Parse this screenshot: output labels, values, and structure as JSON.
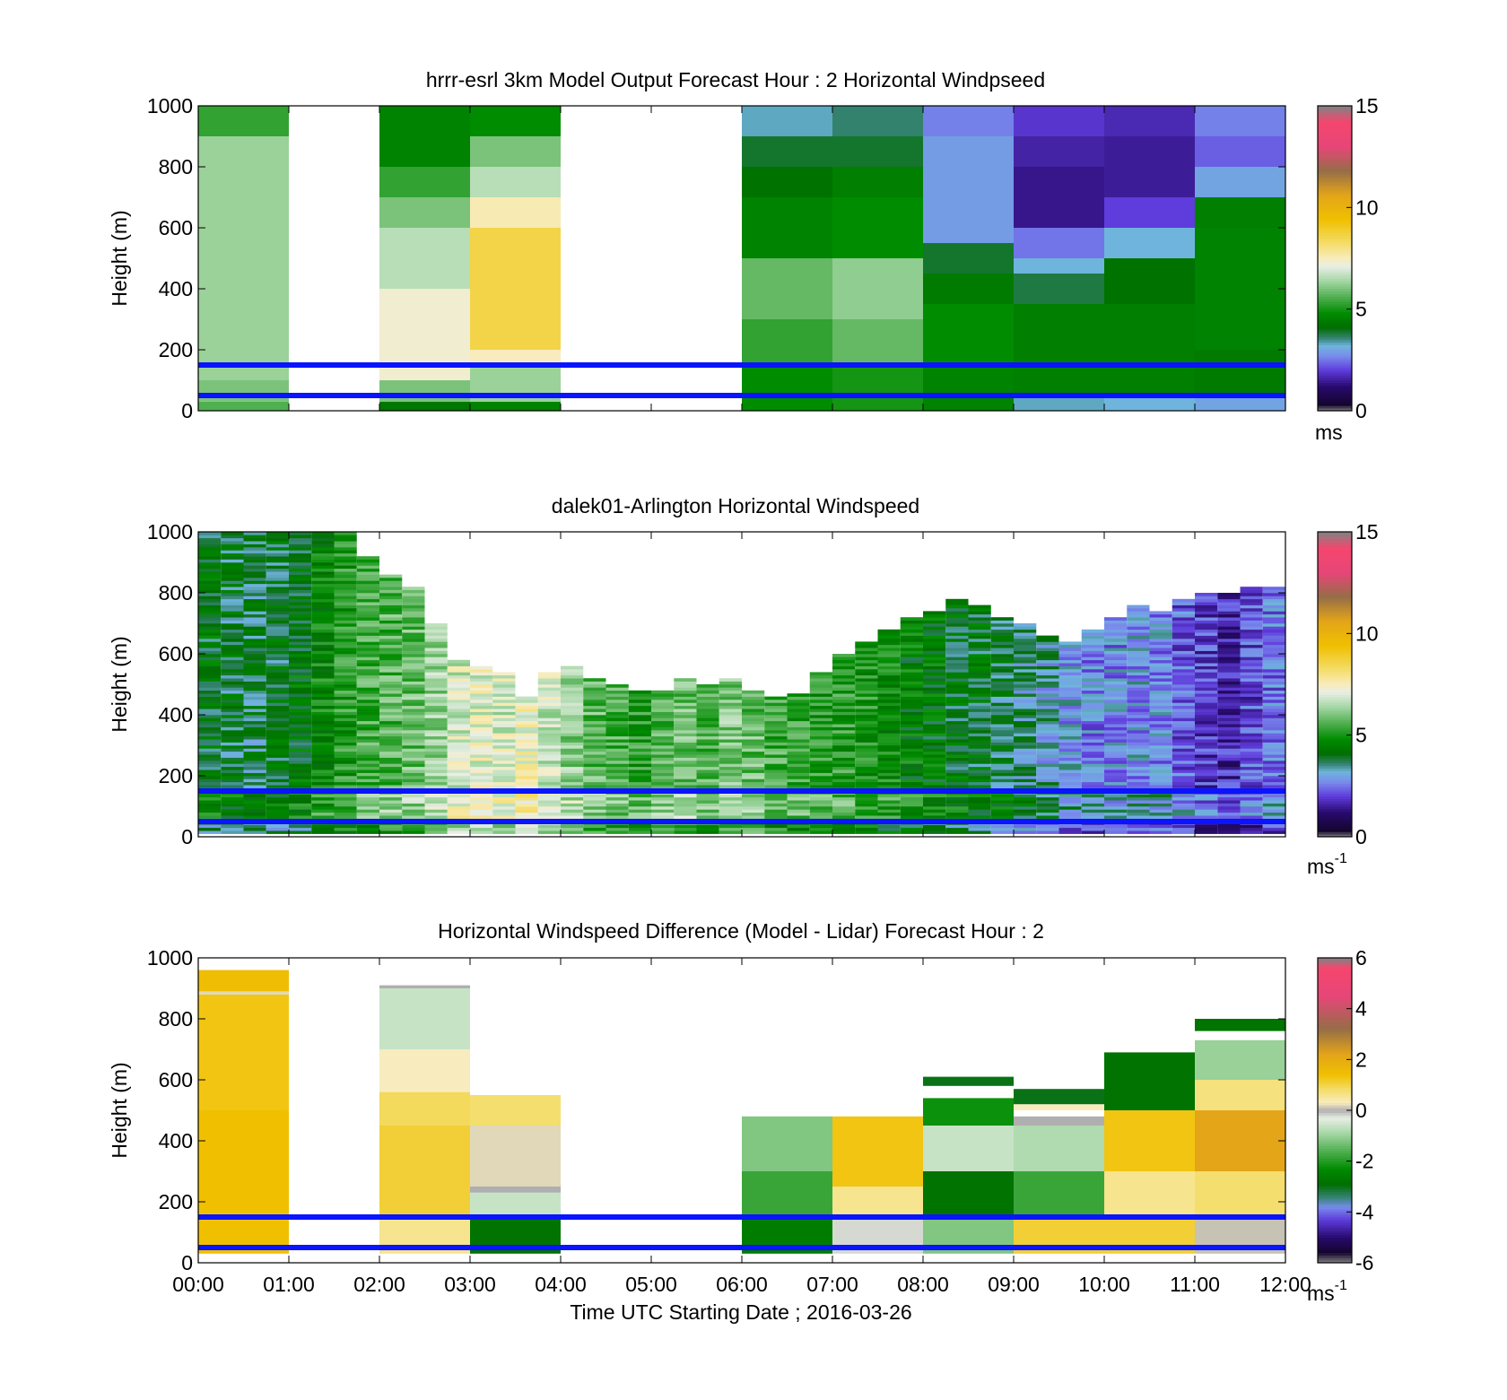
{
  "figure": {
    "xlabel": "Time UTC  Starting Date ; 2016-03-26",
    "x_ticks": [
      "00:00",
      "01:00",
      "02:00",
      "03:00",
      "04:00",
      "05:00",
      "06:00",
      "07:00",
      "08:00",
      "09:00",
      "10:00",
      "11:00",
      "12:00"
    ]
  },
  "colors": {
    "reference_line": "#0a14ff",
    "missing": "#ffffff"
  },
  "chart_data": [
    {
      "type": "heatmap",
      "title": "hrrr-esrl 3km Model Output   Forecast Hour : 2 Horizontal Windpseed",
      "ylabel": "Height (m)",
      "xlim_hours": [
        0,
        12
      ],
      "ylim": [
        0,
        1000
      ],
      "y_ticks": [
        "0",
        "200",
        "400",
        "600",
        "800",
        "1000"
      ],
      "colorbar": {
        "label": "ms",
        "label_sup": "",
        "range": [
          0,
          15
        ],
        "ticks": [
          "0",
          "5",
          "10",
          "15"
        ],
        "scale": "speed"
      },
      "reference_lines_m": [
        50,
        150
      ],
      "bin_width_hours": 1,
      "columns": [
        {
          "start_hour": 0,
          "values": [
            [
              0,
              30,
              5.6
            ],
            [
              30,
              100,
              6.0
            ],
            [
              100,
              900,
              6.3
            ],
            [
              900,
              1000,
              5.3
            ]
          ]
        },
        {
          "start_hour": 1,
          "values": []
        },
        {
          "start_hour": 2,
          "values": [
            [
              0,
              30,
              4.3
            ],
            [
              30,
              100,
              6.0
            ],
            [
              100,
              400,
              7.3
            ],
            [
              400,
              600,
              6.6
            ],
            [
              600,
              700,
              6.0
            ],
            [
              700,
              800,
              5.3
            ],
            [
              800,
              1000,
              4.6
            ]
          ]
        },
        {
          "start_hour": 3,
          "values": [
            [
              0,
              30,
              4.6
            ],
            [
              30,
              150,
              6.3
            ],
            [
              150,
              200,
              7.5
            ],
            [
              200,
              600,
              8.6
            ],
            [
              600,
              700,
              7.6
            ],
            [
              700,
              800,
              6.6
            ],
            [
              800,
              900,
              6.0
            ],
            [
              900,
              1000,
              4.8
            ]
          ]
        },
        {
          "start_hour": 4,
          "values": []
        },
        {
          "start_hour": 5,
          "values": []
        },
        {
          "start_hour": 6,
          "values": [
            [
              0,
              150,
              4.8
            ],
            [
              150,
              300,
              5.3
            ],
            [
              300,
              500,
              5.8
            ],
            [
              500,
              700,
              4.6
            ],
            [
              700,
              800,
              4.2
            ],
            [
              800,
              900,
              3.9
            ],
            [
              900,
              1000,
              3.3
            ]
          ]
        },
        {
          "start_hour": 7,
          "values": [
            [
              0,
              150,
              5.0
            ],
            [
              150,
              300,
              5.8
            ],
            [
              300,
              500,
              6.2
            ],
            [
              500,
              700,
              4.8
            ],
            [
              700,
              800,
              4.5
            ],
            [
              800,
              900,
              3.9
            ],
            [
              900,
              1000,
              3.6
            ]
          ]
        },
        {
          "start_hour": 8,
          "values": [
            [
              0,
              150,
              4.6
            ],
            [
              150,
              350,
              4.8
            ],
            [
              350,
              450,
              4.4
            ],
            [
              450,
              550,
              3.9
            ],
            [
              550,
              900,
              2.9
            ],
            [
              900,
              1000,
              2.6
            ]
          ]
        },
        {
          "start_hour": 9,
          "values": [
            [
              0,
              50,
              3.3
            ],
            [
              50,
              350,
              4.5
            ],
            [
              350,
              450,
              3.8
            ],
            [
              450,
              500,
              3.2
            ],
            [
              500,
              600,
              2.5
            ],
            [
              600,
              800,
              1.4
            ],
            [
              800,
              900,
              1.6
            ],
            [
              900,
              1000,
              1.9
            ]
          ]
        },
        {
          "start_hour": 10,
          "values": [
            [
              0,
              50,
              3.2
            ],
            [
              50,
              350,
              4.5
            ],
            [
              350,
              500,
              4.2
            ],
            [
              500,
              600,
              3.2
            ],
            [
              600,
              700,
              2.0
            ],
            [
              700,
              900,
              1.5
            ],
            [
              900,
              1000,
              1.7
            ]
          ]
        },
        {
          "start_hour": 11,
          "values": [
            [
              0,
              50,
              3.0
            ],
            [
              50,
              200,
              4.4
            ],
            [
              200,
              600,
              4.6
            ],
            [
              600,
              700,
              4.5
            ],
            [
              700,
              800,
              3.0
            ],
            [
              800,
              900,
              2.3
            ],
            [
              900,
              1000,
              2.6
            ]
          ]
        }
      ]
    },
    {
      "type": "heatmap",
      "title": "dalek01-Arlington  Horizontal Windspeed",
      "ylabel": "Height (m)",
      "xlim_hours": [
        0,
        12
      ],
      "ylim": [
        0,
        1000
      ],
      "y_ticks": [
        "0",
        "200",
        "400",
        "600",
        "800",
        "1000"
      ],
      "colorbar": {
        "label": "ms",
        "label_sup": "-1",
        "range": [
          0,
          15
        ],
        "ticks": [
          "0",
          "5",
          "10",
          "15"
        ],
        "scale": "speed"
      },
      "reference_lines_m": [
        50,
        150
      ],
      "bin_width_hours": 0.25,
      "columns": [
        {
          "start_hour": 0.0,
          "top_m": 1000,
          "mean": 4.6
        },
        {
          "start_hour": 0.25,
          "top_m": 1000,
          "mean": 4.4
        },
        {
          "start_hour": 0.5,
          "top_m": 1000,
          "mean": 4.3
        },
        {
          "start_hour": 0.75,
          "top_m": 1000,
          "mean": 4.5
        },
        {
          "start_hour": 1.0,
          "top_m": 1000,
          "mean": 4.7
        },
        {
          "start_hour": 1.25,
          "top_m": 1000,
          "mean": 5.2
        },
        {
          "start_hour": 1.5,
          "top_m": 1000,
          "mean": 5.6
        },
        {
          "start_hour": 1.75,
          "top_m": 920,
          "mean": 5.9
        },
        {
          "start_hour": 2.0,
          "top_m": 860,
          "mean": 6.1
        },
        {
          "start_hour": 2.25,
          "top_m": 820,
          "mean": 6.3
        },
        {
          "start_hour": 2.5,
          "top_m": 700,
          "mean": 6.8
        },
        {
          "start_hour": 2.75,
          "top_m": 580,
          "mean": 7.4
        },
        {
          "start_hour": 3.0,
          "top_m": 560,
          "mean": 7.6
        },
        {
          "start_hour": 3.25,
          "top_m": 540,
          "mean": 7.4
        },
        {
          "start_hour": 3.5,
          "top_m": 460,
          "mean": 7.8
        },
        {
          "start_hour": 3.75,
          "top_m": 540,
          "mean": 7.3
        },
        {
          "start_hour": 4.0,
          "top_m": 560,
          "mean": 6.6
        },
        {
          "start_hour": 4.25,
          "top_m": 520,
          "mean": 6.2
        },
        {
          "start_hour": 4.5,
          "top_m": 500,
          "mean": 6.0
        },
        {
          "start_hour": 4.75,
          "top_m": 480,
          "mean": 5.7
        },
        {
          "start_hour": 5.0,
          "top_m": 480,
          "mean": 6.2
        },
        {
          "start_hour": 5.25,
          "top_m": 520,
          "mean": 6.4
        },
        {
          "start_hour": 5.5,
          "top_m": 500,
          "mean": 6.1
        },
        {
          "start_hour": 5.75,
          "top_m": 520,
          "mean": 6.5
        },
        {
          "start_hour": 6.0,
          "top_m": 480,
          "mean": 6.3
        },
        {
          "start_hour": 6.25,
          "top_m": 460,
          "mean": 5.9
        },
        {
          "start_hour": 6.5,
          "top_m": 470,
          "mean": 5.8
        },
        {
          "start_hour": 6.75,
          "top_m": 540,
          "mean": 5.6
        },
        {
          "start_hour": 7.0,
          "top_m": 600,
          "mean": 5.7
        },
        {
          "start_hour": 7.25,
          "top_m": 640,
          "mean": 5.5
        },
        {
          "start_hour": 7.5,
          "top_m": 680,
          "mean": 5.3
        },
        {
          "start_hour": 7.75,
          "top_m": 720,
          "mean": 5.0
        },
        {
          "start_hour": 8.0,
          "top_m": 740,
          "mean": 4.8
        },
        {
          "start_hour": 8.25,
          "top_m": 780,
          "mean": 4.6
        },
        {
          "start_hour": 8.5,
          "top_m": 760,
          "mean": 4.5
        },
        {
          "start_hour": 8.75,
          "top_m": 720,
          "mean": 4.3
        },
        {
          "start_hour": 9.0,
          "top_m": 700,
          "mean": 4.0
        },
        {
          "start_hour": 9.25,
          "top_m": 660,
          "mean": 3.8
        },
        {
          "start_hour": 9.5,
          "top_m": 640,
          "mean": 3.4
        },
        {
          "start_hour": 9.75,
          "top_m": 680,
          "mean": 3.1
        },
        {
          "start_hour": 10.0,
          "top_m": 720,
          "mean": 3.2
        },
        {
          "start_hour": 10.25,
          "top_m": 760,
          "mean": 3.3
        },
        {
          "start_hour": 10.5,
          "top_m": 740,
          "mean": 3.2
        },
        {
          "start_hour": 10.75,
          "top_m": 780,
          "mean": 2.8
        },
        {
          "start_hour": 11.0,
          "top_m": 800,
          "mean": 2.5
        },
        {
          "start_hour": 11.25,
          "top_m": 800,
          "mean": 2.2
        },
        {
          "start_hour": 11.5,
          "top_m": 820,
          "mean": 2.6
        },
        {
          "start_hour": 11.75,
          "top_m": 820,
          "mean": 3.0
        }
      ]
    },
    {
      "type": "heatmap",
      "title": "Horizontal Windspeed Difference (Model - Lidar) Forecast Hour : 2",
      "ylabel": "Height (m)",
      "xlim_hours": [
        0,
        12
      ],
      "ylim": [
        0,
        1000
      ],
      "y_ticks": [
        "0",
        "200",
        "400",
        "600",
        "800",
        "1000"
      ],
      "colorbar": {
        "label": "ms",
        "label_sup": "-1",
        "range": [
          -6,
          6
        ],
        "ticks": [
          "-6",
          "-4",
          "-2",
          "0",
          "2",
          "4",
          "6"
        ],
        "scale": "difference"
      },
      "reference_lines_m": [
        50,
        150
      ],
      "bin_width_hours": 1,
      "columns": [
        {
          "start_hour": 0,
          "values": [
            [
              30,
              500,
              1.4
            ],
            [
              500,
              880,
              1.3
            ],
            [
              880,
              890,
              0.2
            ],
            [
              890,
              960,
              1.5
            ]
          ]
        },
        {
          "start_hour": 1,
          "values": []
        },
        {
          "start_hour": 2,
          "values": [
            [
              30,
              150,
              0.6
            ],
            [
              150,
              450,
              1.1
            ],
            [
              450,
              560,
              0.9
            ],
            [
              560,
              700,
              0.3
            ],
            [
              700,
              900,
              -0.6
            ],
            [
              900,
              910,
              0.0
            ]
          ]
        },
        {
          "start_hour": 3,
          "values": [
            [
              30,
              150,
              -2.8
            ],
            [
              150,
              230,
              -0.6
            ],
            [
              230,
              250,
              0.0
            ],
            [
              250,
              450,
              0.2
            ],
            [
              450,
              550,
              0.8
            ]
          ]
        },
        {
          "start_hour": 4,
          "values": []
        },
        {
          "start_hour": 5,
          "values": []
        },
        {
          "start_hour": 6,
          "values": [
            [
              30,
              150,
              -2.6
            ],
            [
              150,
              300,
              -1.8
            ],
            [
              300,
              480,
              -1.2
            ]
          ]
        },
        {
          "start_hour": 7,
          "values": [
            [
              30,
              150,
              -0.2
            ],
            [
              150,
              250,
              0.6
            ],
            [
              250,
              480,
              1.3
            ]
          ]
        },
        {
          "start_hour": 8,
          "values": [
            [
              30,
              150,
              -1.2
            ],
            [
              150,
              300,
              -2.8
            ],
            [
              300,
              450,
              -0.6
            ],
            [
              450,
              540,
              -2.2
            ],
            [
              580,
              610,
              -3.0
            ]
          ]
        },
        {
          "start_hour": 9,
          "values": [
            [
              30,
              150,
              1.1
            ],
            [
              150,
              300,
              -1.8
            ],
            [
              300,
              450,
              -0.8
            ],
            [
              450,
              480,
              0.0
            ],
            [
              500,
              520,
              0.3
            ],
            [
              520,
              570,
              -3.0
            ]
          ]
        },
        {
          "start_hour": 10,
          "values": [
            [
              30,
              150,
              1.1
            ],
            [
              150,
              300,
              0.6
            ],
            [
              300,
              500,
              1.3
            ],
            [
              500,
              690,
              -2.8
            ]
          ]
        },
        {
          "start_hour": 11,
          "values": [
            [
              30,
              150,
              0.1
            ],
            [
              150,
              300,
              0.8
            ],
            [
              300,
              500,
              2.2
            ],
            [
              500,
              600,
              0.7
            ],
            [
              600,
              730,
              -1.0
            ],
            [
              760,
              800,
              -2.8
            ]
          ]
        }
      ]
    }
  ]
}
